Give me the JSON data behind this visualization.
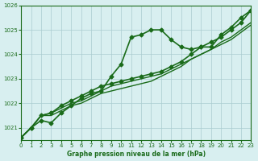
{
  "title": "Graphe pression niveau de la mer (hPa)",
  "bg_color": "#d8eff0",
  "grid_color": "#aaccd0",
  "line_color": "#1a6b1a",
  "xlim": [
    0,
    23
  ],
  "ylim": [
    1020.5,
    1026.0
  ],
  "yticks": [
    1021,
    1022,
    1023,
    1024,
    1025,
    1026
  ],
  "xticks": [
    0,
    1,
    2,
    3,
    4,
    5,
    6,
    7,
    8,
    9,
    10,
    11,
    12,
    13,
    14,
    15,
    16,
    17,
    18,
    19,
    20,
    21,
    22,
    23
  ],
  "series": [
    {
      "x": [
        0,
        1,
        2,
        3,
        4,
        5,
        6,
        7,
        8,
        9,
        10,
        11,
        12,
        13,
        14,
        15,
        16,
        17,
        18,
        19,
        20,
        21,
        22,
        23
      ],
      "y": [
        1020.6,
        1021.0,
        1021.3,
        1021.2,
        1021.6,
        1021.9,
        1022.2,
        1022.4,
        1022.5,
        1023.1,
        1023.6,
        1024.7,
        1024.8,
        1025.0,
        1025.0,
        1024.6,
        1024.3,
        1024.2,
        1024.3,
        1024.3,
        1024.8,
        1025.1,
        1025.5,
        1025.8
      ],
      "marker": "D",
      "markersize": 2.5,
      "linewidth": 1.2
    },
    {
      "x": [
        0,
        1,
        2,
        3,
        4,
        5,
        6,
        7,
        8,
        9,
        10,
        11,
        12,
        13,
        14,
        15,
        16,
        17,
        18,
        19,
        20,
        21,
        22,
        23
      ],
      "y": [
        1020.6,
        1021.0,
        1021.5,
        1021.5,
        1021.7,
        1021.9,
        1022.0,
        1022.2,
        1022.4,
        1022.5,
        1022.6,
        1022.7,
        1022.8,
        1022.9,
        1023.1,
        1023.3,
        1023.5,
        1023.8,
        1024.0,
        1024.2,
        1024.4,
        1024.6,
        1024.9,
        1025.2
      ],
      "marker": null,
      "markersize": 0,
      "linewidth": 1.0
    },
    {
      "x": [
        0,
        1,
        2,
        3,
        4,
        5,
        6,
        7,
        8,
        9,
        10,
        11,
        12,
        13,
        14,
        15,
        16,
        17,
        18,
        19,
        20,
        21,
        22,
        23
      ],
      "y": [
        1020.6,
        1021.0,
        1021.5,
        1021.6,
        1021.8,
        1022.0,
        1022.1,
        1022.3,
        1022.5,
        1022.7,
        1022.8,
        1022.9,
        1023.0,
        1023.1,
        1023.2,
        1023.4,
        1023.6,
        1023.8,
        1024.0,
        1024.2,
        1024.5,
        1024.7,
        1025.0,
        1025.3
      ],
      "marker": null,
      "markersize": 0,
      "linewidth": 1.0
    },
    {
      "x": [
        0,
        1,
        2,
        3,
        4,
        5,
        6,
        7,
        8,
        9,
        10,
        11,
        12,
        13,
        14,
        15,
        16,
        17,
        18,
        19,
        20,
        21,
        22,
        23
      ],
      "y": [
        1020.6,
        1021.0,
        1021.5,
        1021.6,
        1021.9,
        1022.1,
        1022.3,
        1022.5,
        1022.7,
        1022.8,
        1022.9,
        1023.0,
        1023.1,
        1023.2,
        1023.3,
        1023.5,
        1023.7,
        1024.0,
        1024.3,
        1024.5,
        1024.7,
        1025.0,
        1025.3,
        1025.8
      ],
      "marker": "D",
      "markersize": 2.5,
      "linewidth": 1.2
    }
  ]
}
